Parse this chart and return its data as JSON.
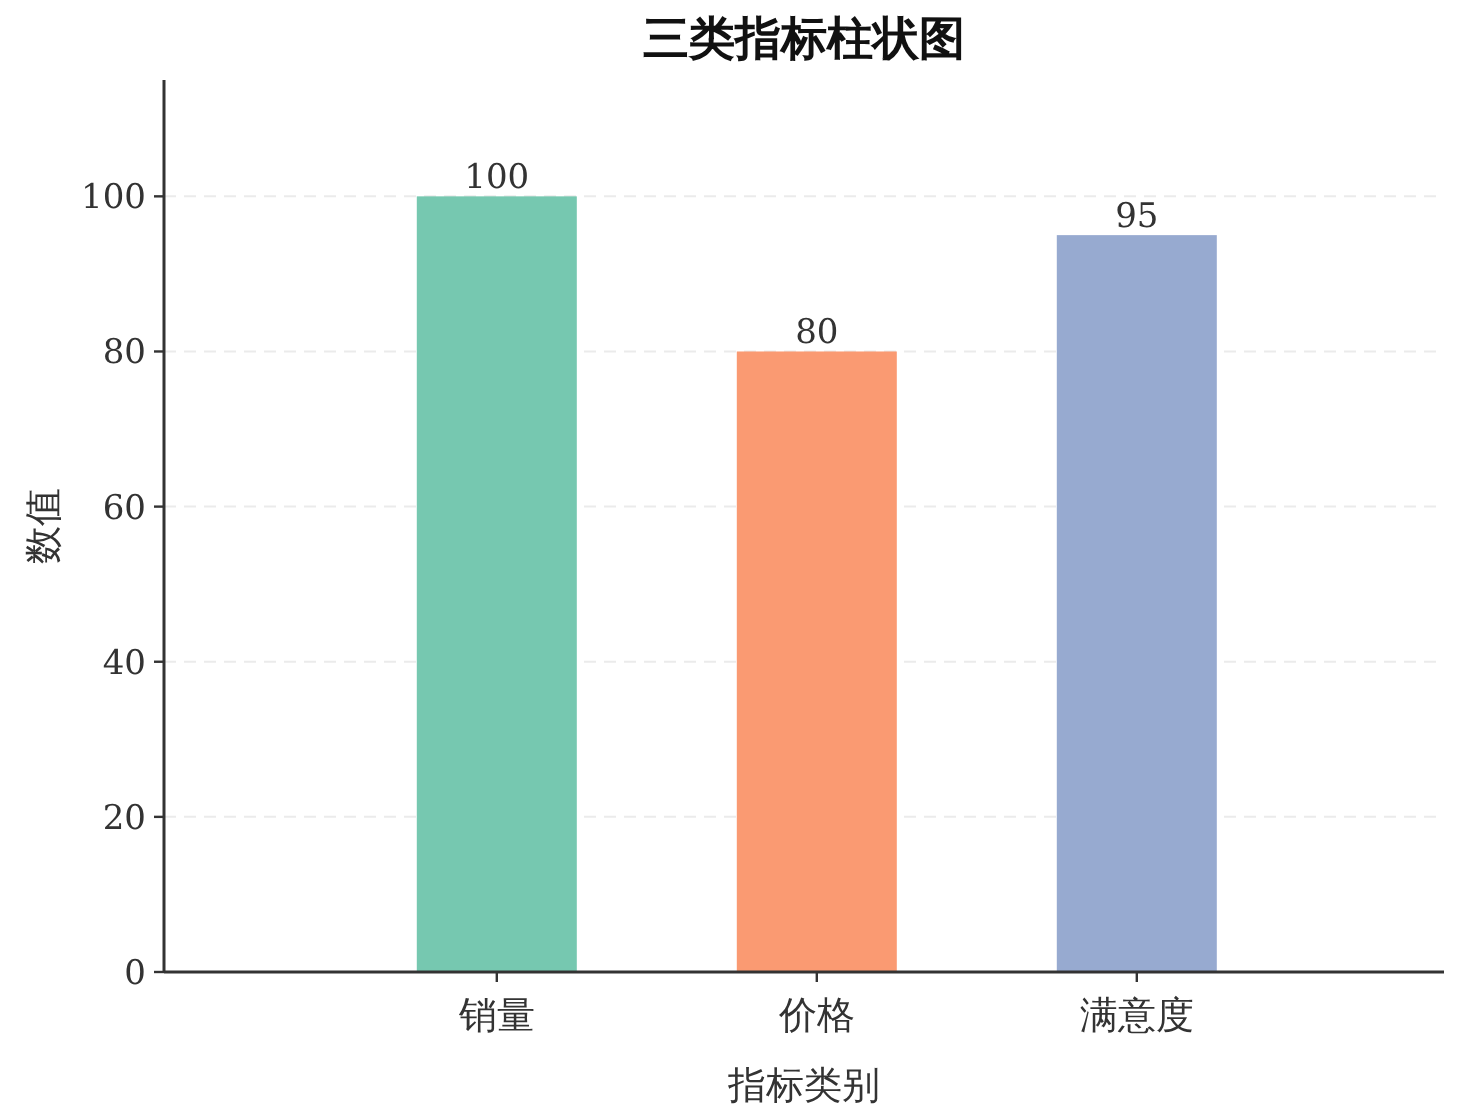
{
  "chart_data": {
    "type": "bar",
    "title": "三类指标柱状图",
    "xlabel": "指标类别",
    "ylabel": "数值",
    "categories": [
      "销量",
      "价格",
      "满意度"
    ],
    "values": [
      100,
      80,
      95
    ],
    "colors": [
      "#76c8b0",
      "#fa9a72",
      "#97aad0"
    ],
    "ylim": [
      0,
      115
    ],
    "yticks": [
      0,
      20,
      40,
      60,
      80,
      100
    ],
    "grid": "y",
    "data_labels": true
  }
}
